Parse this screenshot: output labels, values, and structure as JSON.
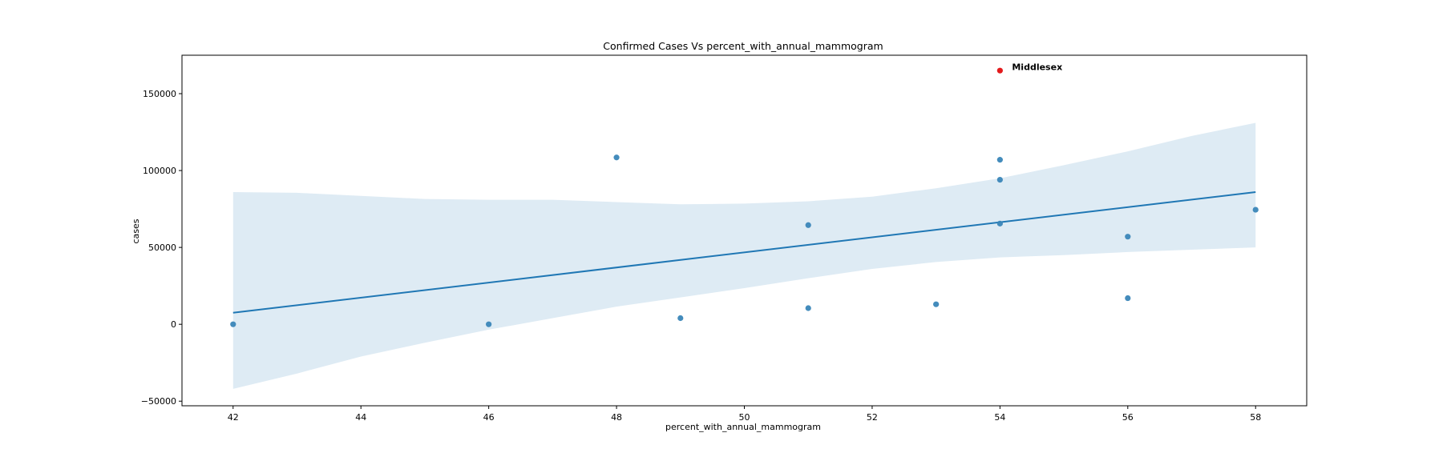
{
  "chart_data": {
    "type": "scatter",
    "title": "Confirmed Cases Vs percent_with_annual_mammogram",
    "xlabel": "percent_with_annual_mammogram",
    "ylabel": "cases",
    "xlim": [
      41.2,
      58.8
    ],
    "ylim": [
      -53000,
      175000
    ],
    "xticks": [
      42,
      44,
      46,
      48,
      50,
      52,
      54,
      56,
      58
    ],
    "yticks": [
      -50000,
      0,
      50000,
      100000,
      150000
    ],
    "ytick_labels": [
      "−50000",
      "0",
      "50000",
      "100000",
      "150000"
    ],
    "grid": false,
    "colors": {
      "points": "#3a86b8",
      "line": "#1f77b4",
      "band": "#1f77b4",
      "highlight": "#e31a1c"
    },
    "points": [
      {
        "x": 42,
        "y": 0
      },
      {
        "x": 46,
        "y": 0
      },
      {
        "x": 48,
        "y": 108500
      },
      {
        "x": 49,
        "y": 4000
      },
      {
        "x": 51,
        "y": 64500
      },
      {
        "x": 51,
        "y": 10500
      },
      {
        "x": 53,
        "y": 13000
      },
      {
        "x": 54,
        "y": 107000
      },
      {
        "x": 54,
        "y": 94000
      },
      {
        "x": 54,
        "y": 65500
      },
      {
        "x": 56,
        "y": 57000
      },
      {
        "x": 56,
        "y": 17000
      },
      {
        "x": 58,
        "y": 74500
      }
    ],
    "regression": {
      "x": [
        42,
        58
      ],
      "y": [
        7500,
        86000
      ]
    },
    "confidence_band": {
      "x": [
        42,
        43,
        44,
        45,
        46,
        47,
        48,
        49,
        50,
        51,
        52,
        53,
        54,
        55,
        56,
        57,
        58
      ],
      "upper": [
        86000,
        85500,
        83500,
        81500,
        81000,
        81000,
        79500,
        78000,
        78500,
        80000,
        83000,
        88500,
        95000,
        103500,
        112500,
        122500,
        131000
      ],
      "lower": [
        -42000,
        -32000,
        -21000,
        -12000,
        -3500,
        4000,
        11500,
        17500,
        23500,
        30000,
        36000,
        40500,
        43500,
        45000,
        47000,
        48500,
        50000
      ]
    },
    "highlight": {
      "x": 54,
      "y": 165000,
      "label": "Middlesex"
    }
  }
}
